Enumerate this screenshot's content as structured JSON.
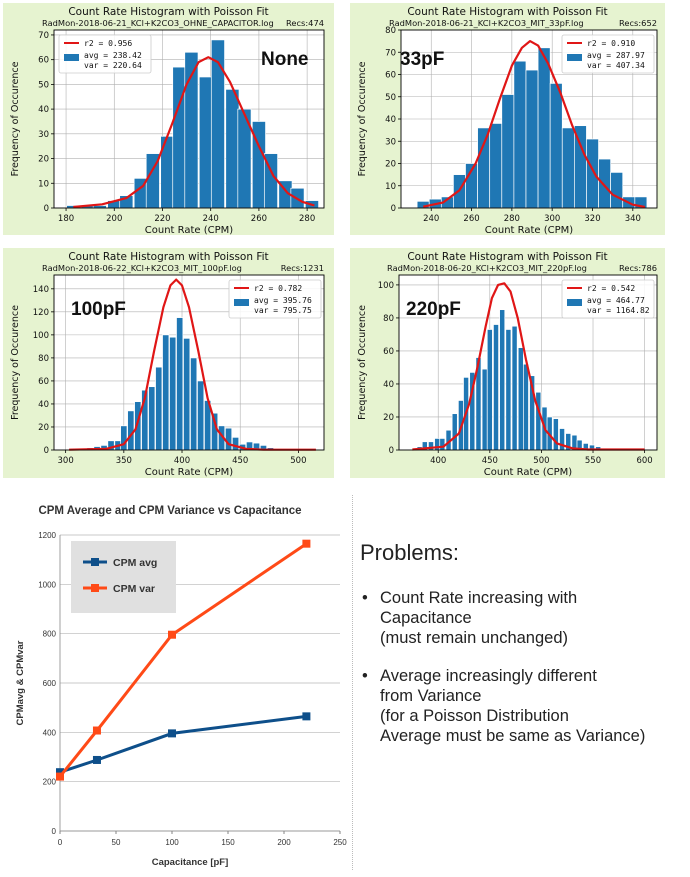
{
  "chart_data": [
    {
      "type": "bar",
      "title": "Count Rate Histogram with Poisson Fit",
      "subtitle": "RadMon-2018-06-21_KCl+K2CO3_OHNE_CAPACITOR.log",
      "records_label": "Recs:474",
      "tag": "None",
      "xlabel": "Count Rate (CPM)",
      "ylabel": "Frequency of Occurence",
      "xlim": [
        175,
        287
      ],
      "ylim": [
        0,
        72
      ],
      "xticks": [
        180,
        200,
        220,
        240,
        260,
        280
      ],
      "yticks": [
        0,
        10,
        20,
        30,
        40,
        50,
        60,
        70
      ],
      "legend": {
        "line": "r2 = 0.956",
        "bar": "avg = 238.42",
        "bar2": "var = 220.64"
      },
      "bin_width": 5.5,
      "bins": [
        {
          "x": 183,
          "y": 1
        },
        {
          "x": 189,
          "y": 1
        },
        {
          "x": 194,
          "y": 1
        },
        {
          "x": 200,
          "y": 3
        },
        {
          "x": 205,
          "y": 5
        },
        {
          "x": 211,
          "y": 12
        },
        {
          "x": 216,
          "y": 22
        },
        {
          "x": 222,
          "y": 29
        },
        {
          "x": 227,
          "y": 57
        },
        {
          "x": 232,
          "y": 63
        },
        {
          "x": 238,
          "y": 53
        },
        {
          "x": 243,
          "y": 68
        },
        {
          "x": 249,
          "y": 48
        },
        {
          "x": 254,
          "y": 40
        },
        {
          "x": 260,
          "y": 35
        },
        {
          "x": 265,
          "y": 22
        },
        {
          "x": 271,
          "y": 11
        },
        {
          "x": 276,
          "y": 8
        },
        {
          "x": 282,
          "y": 3
        }
      ],
      "fit": [
        {
          "x": 183,
          "y": 0.4
        },
        {
          "x": 195,
          "y": 1.5
        },
        {
          "x": 205,
          "y": 4
        },
        {
          "x": 212,
          "y": 9
        },
        {
          "x": 218,
          "y": 19
        },
        {
          "x": 224,
          "y": 34
        },
        {
          "x": 230,
          "y": 50
        },
        {
          "x": 235,
          "y": 59
        },
        {
          "x": 239,
          "y": 61
        },
        {
          "x": 243,
          "y": 59
        },
        {
          "x": 248,
          "y": 51
        },
        {
          "x": 254,
          "y": 38
        },
        {
          "x": 260,
          "y": 25
        },
        {
          "x": 266,
          "y": 13
        },
        {
          "x": 272,
          "y": 6
        },
        {
          "x": 278,
          "y": 2.5
        },
        {
          "x": 283,
          "y": 1
        }
      ]
    },
    {
      "type": "bar",
      "title": "Count Rate Histogram with Poisson Fit",
      "subtitle": "RadMon-2018-06-21_KCl+K2CO3_MIT_33pF.log",
      "records_label": "Recs:652",
      "tag": "33pF",
      "xlabel": "Count Rate (CPM)",
      "ylabel": "Frequency of Occurence",
      "xlim": [
        225,
        352
      ],
      "ylim": [
        0,
        80
      ],
      "xticks": [
        240,
        260,
        280,
        300,
        320,
        340
      ],
      "yticks": [
        0,
        10,
        20,
        30,
        40,
        50,
        60,
        70,
        80
      ],
      "legend": {
        "line": "r2 = 0.910",
        "bar": "avg = 287.97",
        "bar2": "var = 407.34"
      },
      "bin_width": 6,
      "bins": [
        {
          "x": 236,
          "y": 3
        },
        {
          "x": 242,
          "y": 4
        },
        {
          "x": 248,
          "y": 5
        },
        {
          "x": 254,
          "y": 15
        },
        {
          "x": 260,
          "y": 20
        },
        {
          "x": 266,
          "y": 36
        },
        {
          "x": 272,
          "y": 38
        },
        {
          "x": 278,
          "y": 51
        },
        {
          "x": 284,
          "y": 66
        },
        {
          "x": 290,
          "y": 62
        },
        {
          "x": 296,
          "y": 72
        },
        {
          "x": 302,
          "y": 56
        },
        {
          "x": 308,
          "y": 36
        },
        {
          "x": 314,
          "y": 37
        },
        {
          "x": 320,
          "y": 31
        },
        {
          "x": 326,
          "y": 22
        },
        {
          "x": 332,
          "y": 16
        },
        {
          "x": 338,
          "y": 5
        },
        {
          "x": 344,
          "y": 5
        }
      ],
      "fit": [
        {
          "x": 236,
          "y": 0.6
        },
        {
          "x": 246,
          "y": 2.5
        },
        {
          "x": 254,
          "y": 8
        },
        {
          "x": 262,
          "y": 20
        },
        {
          "x": 268,
          "y": 33
        },
        {
          "x": 274,
          "y": 49
        },
        {
          "x": 280,
          "y": 64
        },
        {
          "x": 285,
          "y": 72
        },
        {
          "x": 289,
          "y": 75
        },
        {
          "x": 293,
          "y": 73
        },
        {
          "x": 298,
          "y": 65
        },
        {
          "x": 304,
          "y": 52
        },
        {
          "x": 310,
          "y": 37
        },
        {
          "x": 316,
          "y": 24
        },
        {
          "x": 322,
          "y": 14
        },
        {
          "x": 330,
          "y": 6
        },
        {
          "x": 340,
          "y": 1.5
        },
        {
          "x": 346,
          "y": 0.5
        }
      ]
    },
    {
      "type": "bar",
      "title": "Count Rate Histogram with Poisson Fit",
      "subtitle": "RadMon-2018-06-22_KCl+K2CO3_MIT_100pF.log",
      "records_label": "Recs:1231",
      "tag": "100pF",
      "xlabel": "Count Rate (CPM)",
      "ylabel": "Frequency of Occurence",
      "xlim": [
        290,
        522
      ],
      "ylim": [
        0,
        152
      ],
      "xticks": [
        300,
        350,
        400,
        450,
        500
      ],
      "yticks": [
        0,
        20,
        40,
        60,
        80,
        100,
        120,
        140
      ],
      "legend": {
        "line": "r2 = 0.782",
        "bar": "avg = 395.76",
        "bar2": "var = 795.75"
      },
      "bin_width": 5.5,
      "bins": [
        {
          "x": 309,
          "y": 1
        },
        {
          "x": 321,
          "y": 2
        },
        {
          "x": 327,
          "y": 3
        },
        {
          "x": 333,
          "y": 4
        },
        {
          "x": 339,
          "y": 8
        },
        {
          "x": 345,
          "y": 8
        },
        {
          "x": 350,
          "y": 21
        },
        {
          "x": 356,
          "y": 34
        },
        {
          "x": 362,
          "y": 42
        },
        {
          "x": 368,
          "y": 52
        },
        {
          "x": 374,
          "y": 55
        },
        {
          "x": 380,
          "y": 72
        },
        {
          "x": 386,
          "y": 100
        },
        {
          "x": 392,
          "y": 98
        },
        {
          "x": 398,
          "y": 115
        },
        {
          "x": 404,
          "y": 97
        },
        {
          "x": 410,
          "y": 80
        },
        {
          "x": 416,
          "y": 60
        },
        {
          "x": 422,
          "y": 43
        },
        {
          "x": 428,
          "y": 32
        },
        {
          "x": 434,
          "y": 21
        },
        {
          "x": 440,
          "y": 19
        },
        {
          "x": 446,
          "y": 11
        },
        {
          "x": 452,
          "y": 5
        },
        {
          "x": 458,
          "y": 7
        },
        {
          "x": 464,
          "y": 6
        },
        {
          "x": 470,
          "y": 4
        },
        {
          "x": 476,
          "y": 2
        },
        {
          "x": 482,
          "y": 1
        },
        {
          "x": 494,
          "y": 1
        }
      ],
      "fit": [
        {
          "x": 303,
          "y": 0.3
        },
        {
          "x": 335,
          "y": 1
        },
        {
          "x": 350,
          "y": 5
        },
        {
          "x": 360,
          "y": 18
        },
        {
          "x": 368,
          "y": 45
        },
        {
          "x": 376,
          "y": 86
        },
        {
          "x": 384,
          "y": 124
        },
        {
          "x": 390,
          "y": 143
        },
        {
          "x": 395,
          "y": 148
        },
        {
          "x": 400,
          "y": 143
        },
        {
          "x": 406,
          "y": 124
        },
        {
          "x": 414,
          "y": 86
        },
        {
          "x": 422,
          "y": 45
        },
        {
          "x": 430,
          "y": 18
        },
        {
          "x": 440,
          "y": 5
        },
        {
          "x": 455,
          "y": 1
        },
        {
          "x": 470,
          "y": 0.3
        },
        {
          "x": 515,
          "y": 0.3
        }
      ]
    },
    {
      "type": "bar",
      "title": "Count Rate Histogram with Poisson Fit",
      "subtitle": "RadMon-2018-06-20_KCl+K2CO3_MIT_220pF.log",
      "records_label": "Recs:786",
      "tag": "220pF",
      "xlabel": "Count Rate (CPM)",
      "ylabel": "Frequency of Occurence",
      "xlim": [
        362,
        612
      ],
      "ylim": [
        0,
        106
      ],
      "xticks": [
        400,
        450,
        500,
        550,
        600
      ],
      "yticks": [
        0,
        20,
        40,
        60,
        80,
        100
      ],
      "legend": {
        "line": "r2 = 0.542",
        "bar": "avg = 464.77",
        "bar2": "var = 1164.82"
      },
      "bin_width": 5,
      "bins": [
        {
          "x": 382,
          "y": 2
        },
        {
          "x": 387,
          "y": 5
        },
        {
          "x": 393,
          "y": 5
        },
        {
          "x": 399,
          "y": 7
        },
        {
          "x": 404,
          "y": 7
        },
        {
          "x": 410,
          "y": 12
        },
        {
          "x": 416,
          "y": 22
        },
        {
          "x": 422,
          "y": 30
        },
        {
          "x": 427,
          "y": 44
        },
        {
          "x": 433,
          "y": 47
        },
        {
          "x": 439,
          "y": 56
        },
        {
          "x": 445,
          "y": 49
        },
        {
          "x": 450,
          "y": 73
        },
        {
          "x": 456,
          "y": 76
        },
        {
          "x": 462,
          "y": 85
        },
        {
          "x": 468,
          "y": 73
        },
        {
          "x": 474,
          "y": 75
        },
        {
          "x": 480,
          "y": 62
        },
        {
          "x": 485,
          "y": 52
        },
        {
          "x": 491,
          "y": 45
        },
        {
          "x": 497,
          "y": 35
        },
        {
          "x": 503,
          "y": 26
        },
        {
          "x": 508,
          "y": 20
        },
        {
          "x": 514,
          "y": 19
        },
        {
          "x": 520,
          "y": 13
        },
        {
          "x": 526,
          "y": 10
        },
        {
          "x": 532,
          "y": 9
        },
        {
          "x": 537,
          "y": 6
        },
        {
          "x": 543,
          "y": 4
        },
        {
          "x": 549,
          "y": 3
        },
        {
          "x": 555,
          "y": 2
        },
        {
          "x": 566,
          "y": 1
        }
      ],
      "fit": [
        {
          "x": 375,
          "y": 0.3
        },
        {
          "x": 405,
          "y": 2
        },
        {
          "x": 420,
          "y": 10
        },
        {
          "x": 430,
          "y": 28
        },
        {
          "x": 438,
          "y": 50
        },
        {
          "x": 446,
          "y": 75
        },
        {
          "x": 452,
          "y": 92
        },
        {
          "x": 458,
          "y": 100
        },
        {
          "x": 464,
          "y": 101
        },
        {
          "x": 470,
          "y": 96
        },
        {
          "x": 477,
          "y": 80
        },
        {
          "x": 485,
          "y": 55
        },
        {
          "x": 494,
          "y": 30
        },
        {
          "x": 504,
          "y": 12
        },
        {
          "x": 515,
          "y": 4
        },
        {
          "x": 530,
          "y": 1
        },
        {
          "x": 545,
          "y": 0.3
        },
        {
          "x": 600,
          "y": 0.3
        }
      ]
    },
    {
      "type": "line",
      "title": "CPM Average and CPM Variance vs Capacitance",
      "xlabel": "Capacitance [pF]",
      "ylabel": "CPMavg  &  CPMvar",
      "xlim": [
        0,
        250
      ],
      "ylim": [
        0,
        1200
      ],
      "xticks": [
        0,
        50,
        100,
        150,
        200,
        250
      ],
      "yticks": [
        0,
        200,
        400,
        600,
        800,
        1000,
        1200
      ],
      "x": [
        0,
        33,
        100,
        220
      ],
      "series": [
        {
          "name": "CPM avg",
          "values": [
            238.42,
            287.97,
            395.76,
            464.77
          ],
          "color": "#0e4f8a"
        },
        {
          "name": "CPM var",
          "values": [
            220.64,
            407.34,
            795.75,
            1164.82
          ],
          "color": "#ff4a17"
        }
      ],
      "legend_position": "top-left"
    }
  ],
  "problems": {
    "heading": "Problems:",
    "items": [
      {
        "line1": "Count Rate increasing with",
        "line2": "Capacitance",
        "line3": "(must remain unchanged)"
      },
      {
        "line1": "Average increasingly different",
        "line2": "from Variance",
        "line3": "(for a Poisson Distribution",
        "line4": "Average must be same as Variance)"
      }
    ]
  },
  "colors": {
    "bar": "#1f77b4",
    "fit": "#e01616",
    "panel_bg": "#e6f3d0",
    "avg": "#0e4f8a",
    "var": "#ff4a17"
  }
}
